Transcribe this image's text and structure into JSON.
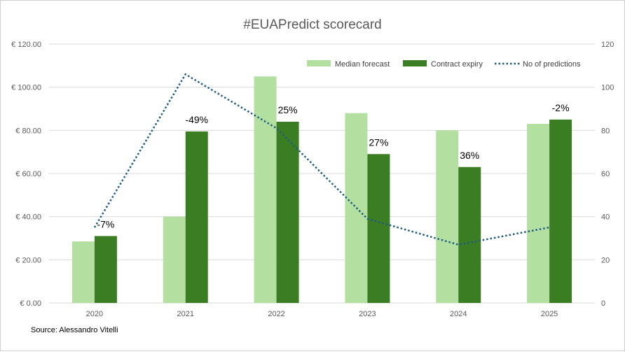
{
  "chart_data": {
    "type": "bar",
    "title": "#EUAPredict scorecard",
    "categories": [
      "2020",
      "2021",
      "2022",
      "2023",
      "2024",
      "2025"
    ],
    "series": [
      {
        "name": "Median forecast",
        "kind": "bar",
        "axis": "left",
        "color": "#b3e0a0",
        "values": [
          28.5,
          40,
          105,
          88,
          80,
          83
        ]
      },
      {
        "name": "Contract expiry",
        "kind": "bar",
        "axis": "left",
        "color": "#3a7d22",
        "values": [
          31,
          79.5,
          84,
          69,
          63,
          85
        ]
      },
      {
        "name": "No of predictions",
        "kind": "line",
        "style": "dotted",
        "axis": "right",
        "color": "#1f5c80",
        "values": [
          35,
          106,
          81,
          39,
          27,
          35
        ]
      }
    ],
    "data_labels": [
      "-7%",
      "-49%",
      "25%",
      "27%",
      "36%",
      "-2%"
    ],
    "y_left": {
      "ylim": [
        0,
        120
      ],
      "ticks": [
        "€ 0.00",
        "€ 20.00",
        "€ 40.00",
        "€ 60.00",
        "€ 80.00",
        "€ 100.00",
        "€ 120.00"
      ],
      "values": [
        0,
        20,
        40,
        60,
        80,
        100,
        120
      ]
    },
    "y_right": {
      "ylim": [
        0,
        120
      ],
      "ticks": [
        "0",
        "20",
        "40",
        "60",
        "80",
        "100",
        "120"
      ],
      "values": [
        0,
        20,
        40,
        60,
        80,
        100,
        120
      ]
    },
    "grid": true,
    "legend_position": "top-right",
    "source": "Source: Alessandro Vitelli"
  },
  "colors": {
    "gridline": "#d9d9d9",
    "axis_text": "#595959"
  }
}
